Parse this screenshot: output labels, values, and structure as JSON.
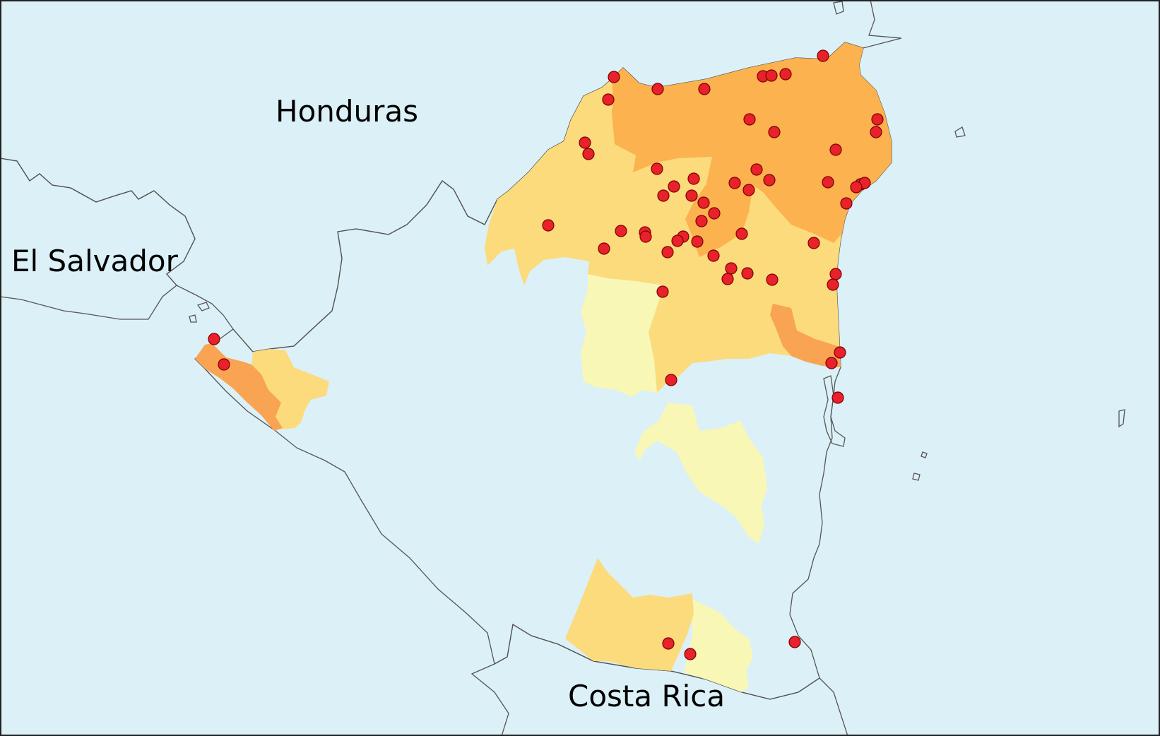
{
  "labels": {
    "honduras": "Honduras",
    "el_salvador": "El Salvador",
    "costa_rica": "Costa Rica"
  },
  "colors": {
    "water": "#dcf0f7",
    "neighbor": "#d8d8d8",
    "base": "#ffffff",
    "level_1": "#f8f7b6",
    "level_2": "#fcdb7c",
    "level_3": "#fbb24f",
    "level_4": "#f9a452",
    "marker": "#e8212a"
  },
  "markers_count": 67
}
